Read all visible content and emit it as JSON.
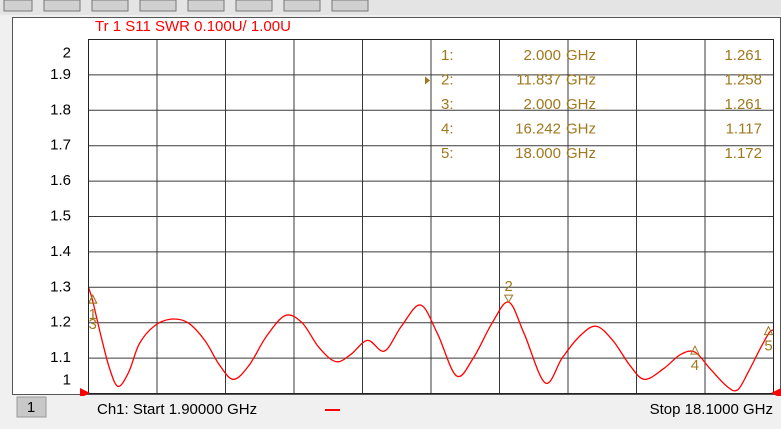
{
  "chart_data": {
    "type": "line",
    "title": "Tr 1  S11 SWR 0.100U/  1.00U",
    "x": [
      1.9,
      2.0,
      2.2,
      2.4,
      2.6,
      2.85,
      3.1,
      3.45,
      3.85,
      4.25,
      4.65,
      5.0,
      5.33,
      5.7,
      6.1,
      6.55,
      6.95,
      7.35,
      7.75,
      8.1,
      8.5,
      8.9,
      9.3,
      9.75,
      10.15,
      10.6,
      11.0,
      11.45,
      11.837,
      12.2,
      12.7,
      13.1,
      13.5,
      13.9,
      14.3,
      14.7,
      15.05,
      15.5,
      15.9,
      16.242,
      16.6,
      17.0,
      17.25,
      17.5,
      17.8,
      18.0,
      18.1
    ],
    "series": [
      {
        "color": "#ff0000",
        "values": [
          1.3,
          1.261,
          1.16,
          1.07,
          1.02,
          1.06,
          1.14,
          1.19,
          1.21,
          1.2,
          1.15,
          1.08,
          1.04,
          1.08,
          1.16,
          1.22,
          1.2,
          1.13,
          1.09,
          1.11,
          1.15,
          1.12,
          1.19,
          1.25,
          1.17,
          1.05,
          1.1,
          1.2,
          1.258,
          1.17,
          1.03,
          1.1,
          1.16,
          1.19,
          1.15,
          1.08,
          1.04,
          1.07,
          1.11,
          1.117,
          1.07,
          1.02,
          1.01,
          1.06,
          1.13,
          1.172,
          1.18
        ]
      }
    ],
    "xlim": [
      1.9,
      18.1
    ],
    "x_divisions": 10,
    "ylim": [
      1,
      2
    ],
    "yticks": [
      1,
      1.1,
      1.2,
      1.3,
      1.4,
      1.5,
      1.6,
      1.7,
      1.8,
      1.9,
      2
    ],
    "grid": true,
    "marker_color": "#a0781e",
    "active_marker": 1,
    "freq_unit": "GHz",
    "markers": [
      {
        "name": "1:",
        "trace_label": "1",
        "freq": 2.0,
        "freq_label": "2.000",
        "value": 1.261
      },
      {
        "name": "2:",
        "trace_label": "2",
        "freq": 11.837,
        "freq_label": "11.837",
        "value": 1.258
      },
      {
        "name": "3:",
        "trace_label": "3",
        "freq": 2.0,
        "freq_label": "2.000",
        "value": 1.261
      },
      {
        "name": "4:",
        "trace_label": "4",
        "freq": 16.242,
        "freq_label": "16.242",
        "value": 1.117
      },
      {
        "name": "5:",
        "trace_label": "5",
        "freq": 18.0,
        "freq_label": "18.000",
        "value": 1.172
      }
    ],
    "channel": "1",
    "start_label": "Ch1:  Start  1.90000 GHz",
    "stop_label": "Stop  18.1000 GHz"
  }
}
